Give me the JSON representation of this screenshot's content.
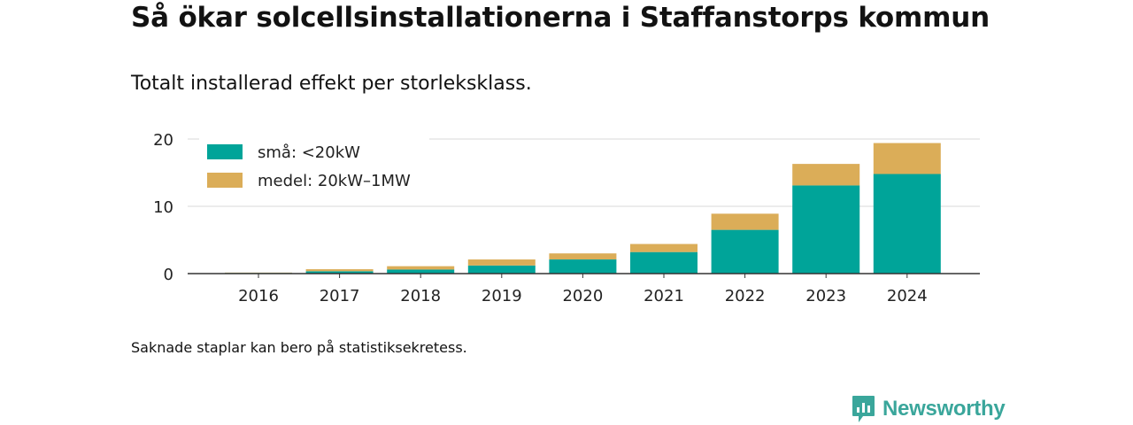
{
  "title": "Så ökar solcellsinstallationerna i Staffanstorps kommun",
  "subtitle": "Totalt installerad effekt per storleksklass.",
  "footnote": "Saknade staplar kan bero på statistiksekretess.",
  "brand": {
    "name": "Newsworthy",
    "color": "#3aa69b",
    "icon": "newsworthy-logo-icon"
  },
  "chart_data": {
    "type": "bar",
    "stacked": true,
    "categories": [
      "2016",
      "2017",
      "2018",
      "2019",
      "2020",
      "2021",
      "2022",
      "2023",
      "2024"
    ],
    "series": [
      {
        "name": "små: <20kW",
        "color": "#00a499",
        "values": [
          0.1,
          0.35,
          0.6,
          1.2,
          2.1,
          3.2,
          6.5,
          13.1,
          14.8
        ]
      },
      {
        "name": "medel: 20kW–1MW",
        "color": "#dbad58",
        "values": [
          0.05,
          0.3,
          0.5,
          0.9,
          0.9,
          1.2,
          2.4,
          3.2,
          4.6
        ]
      }
    ],
    "yticks": [
      0,
      10,
      20
    ],
    "ylim": [
      0,
      20
    ],
    "grid": true,
    "legend_position": "top-left",
    "xlabel": "",
    "ylabel": ""
  }
}
